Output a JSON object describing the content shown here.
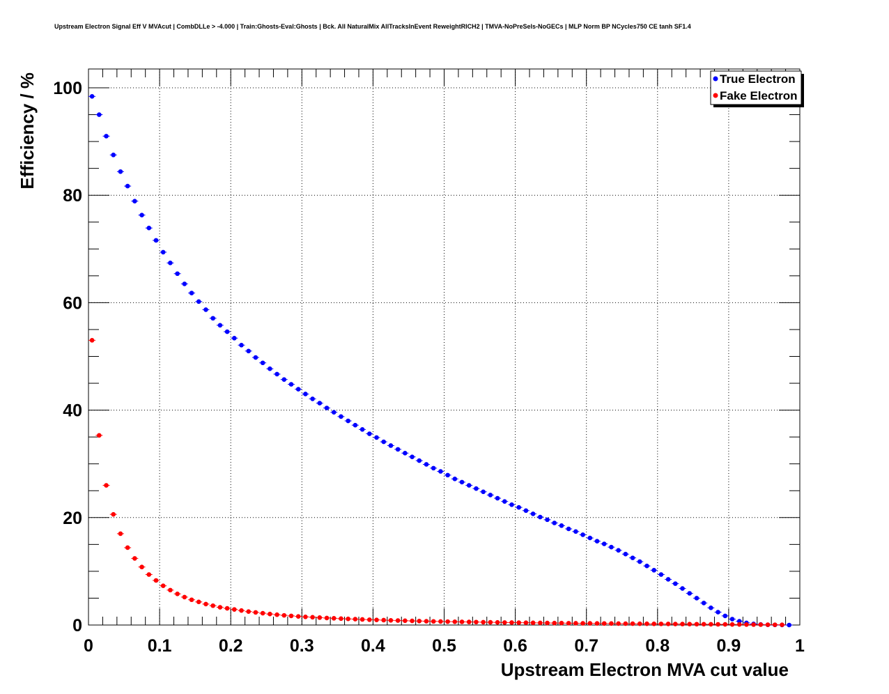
{
  "chart_data": {
    "type": "scatter",
    "title": "Upstream Electron Signal Eff V MVAcut | CombDLLe > -4.000 | Train:Ghosts-Eval:Ghosts | Bck. All NaturalMix AllTracksInEvent ReweightRICH2 | TMVA-NoPreSels-NoGECs | MLP Norm BP NCycles750 CE tanh SF1.4",
    "xlabel": "Upstream Electron MVA cut value",
    "ylabel": "Efficiency / %",
    "xlim": [
      0,
      1
    ],
    "ylim": [
      0,
      103.5
    ],
    "xticks": [
      "0",
      "0.1",
      "0.2",
      "0.3",
      "0.4",
      "0.5",
      "0.6",
      "0.7",
      "0.8",
      "0.9",
      "1"
    ],
    "yticks": [
      "0",
      "20",
      "40",
      "60",
      "80",
      "100"
    ],
    "grid": true,
    "legend_position": "top-right",
    "series": [
      {
        "name": "True Electron",
        "color": "#0000ff",
        "x": [
          0.005,
          0.015,
          0.025,
          0.035,
          0.045,
          0.055,
          0.065,
          0.075,
          0.085,
          0.095,
          0.105,
          0.115,
          0.125,
          0.135,
          0.145,
          0.155,
          0.165,
          0.175,
          0.185,
          0.195,
          0.205,
          0.215,
          0.225,
          0.235,
          0.245,
          0.255,
          0.265,
          0.275,
          0.285,
          0.295,
          0.305,
          0.315,
          0.325,
          0.335,
          0.345,
          0.355,
          0.365,
          0.375,
          0.385,
          0.395,
          0.405,
          0.415,
          0.425,
          0.435,
          0.445,
          0.455,
          0.465,
          0.475,
          0.485,
          0.495,
          0.505,
          0.515,
          0.525,
          0.535,
          0.545,
          0.555,
          0.565,
          0.575,
          0.585,
          0.595,
          0.605,
          0.615,
          0.625,
          0.635,
          0.645,
          0.655,
          0.665,
          0.675,
          0.685,
          0.695,
          0.705,
          0.715,
          0.725,
          0.735,
          0.745,
          0.755,
          0.765,
          0.775,
          0.785,
          0.795,
          0.805,
          0.815,
          0.825,
          0.835,
          0.845,
          0.855,
          0.865,
          0.875,
          0.885,
          0.895,
          0.905,
          0.915,
          0.925,
          0.935,
          0.945,
          0.955,
          0.965,
          0.975,
          0.985
        ],
        "y": [
          98.4,
          95.0,
          91.0,
          87.5,
          84.4,
          81.7,
          78.9,
          76.3,
          73.9,
          71.6,
          69.4,
          67.4,
          65.4,
          63.5,
          61.8,
          60.2,
          58.7,
          57.1,
          55.8,
          54.6,
          53.4,
          52.1,
          51.0,
          49.8,
          48.8,
          47.7,
          46.7,
          45.7,
          44.8,
          43.9,
          43.0,
          42.1,
          41.3,
          40.4,
          39.6,
          38.8,
          38.0,
          37.2,
          36.4,
          35.6,
          34.9,
          34.1,
          33.4,
          32.7,
          32.0,
          31.3,
          30.6,
          29.9,
          29.2,
          28.6,
          27.9,
          27.2,
          26.6,
          26.0,
          25.4,
          24.8,
          24.2,
          23.6,
          23.0,
          22.4,
          21.9,
          21.3,
          20.7,
          20.1,
          19.6,
          19.0,
          18.5,
          17.9,
          17.4,
          16.8,
          16.2,
          15.6,
          15.1,
          14.5,
          13.9,
          13.2,
          12.5,
          11.8,
          11.0,
          10.2,
          9.4,
          8.5,
          7.7,
          6.8,
          5.9,
          5.0,
          4.1,
          3.2,
          2.4,
          1.7,
          1.1,
          0.7,
          0.4,
          0.2,
          0.1,
          0.05,
          0.02,
          0.01,
          0.0
        ]
      },
      {
        "name": "Fake Electron",
        "color": "#ff0000",
        "x": [
          0.005,
          0.015,
          0.025,
          0.035,
          0.045,
          0.055,
          0.065,
          0.075,
          0.085,
          0.095,
          0.105,
          0.115,
          0.125,
          0.135,
          0.145,
          0.155,
          0.165,
          0.175,
          0.185,
          0.195,
          0.205,
          0.215,
          0.225,
          0.235,
          0.245,
          0.255,
          0.265,
          0.275,
          0.285,
          0.295,
          0.305,
          0.315,
          0.325,
          0.335,
          0.345,
          0.355,
          0.365,
          0.375,
          0.385,
          0.395,
          0.405,
          0.415,
          0.425,
          0.435,
          0.445,
          0.455,
          0.465,
          0.475,
          0.485,
          0.495,
          0.505,
          0.515,
          0.525,
          0.535,
          0.545,
          0.555,
          0.565,
          0.575,
          0.585,
          0.595,
          0.605,
          0.615,
          0.625,
          0.635,
          0.645,
          0.655,
          0.665,
          0.675,
          0.685,
          0.695,
          0.705,
          0.715,
          0.725,
          0.735,
          0.745,
          0.755,
          0.765,
          0.775,
          0.785,
          0.795,
          0.805,
          0.815,
          0.825,
          0.835,
          0.845,
          0.855,
          0.865,
          0.875,
          0.885,
          0.895,
          0.905,
          0.915,
          0.925,
          0.935,
          0.945,
          0.955,
          0.965,
          0.975
        ],
        "y": [
          53.0,
          35.3,
          26.0,
          20.6,
          17.0,
          14.4,
          12.4,
          10.8,
          9.4,
          8.3,
          7.3,
          6.5,
          5.8,
          5.2,
          4.7,
          4.3,
          3.9,
          3.6,
          3.3,
          3.1,
          2.9,
          2.7,
          2.5,
          2.35,
          2.2,
          2.05,
          1.92,
          1.8,
          1.7,
          1.6,
          1.52,
          1.45,
          1.38,
          1.31,
          1.25,
          1.19,
          1.14,
          1.09,
          1.04,
          0.99,
          0.95,
          0.91,
          0.87,
          0.83,
          0.8,
          0.77,
          0.74,
          0.71,
          0.68,
          0.66,
          0.63,
          0.61,
          0.59,
          0.57,
          0.55,
          0.53,
          0.51,
          0.49,
          0.47,
          0.46,
          0.44,
          0.43,
          0.41,
          0.4,
          0.38,
          0.37,
          0.36,
          0.34,
          0.33,
          0.32,
          0.31,
          0.3,
          0.29,
          0.28,
          0.27,
          0.26,
          0.25,
          0.24,
          0.23,
          0.22,
          0.21,
          0.2,
          0.19,
          0.18,
          0.17,
          0.16,
          0.15,
          0.14,
          0.13,
          0.12,
          0.11,
          0.1,
          0.09,
          0.08,
          0.07,
          0.06,
          0.05,
          0.04
        ]
      }
    ]
  }
}
